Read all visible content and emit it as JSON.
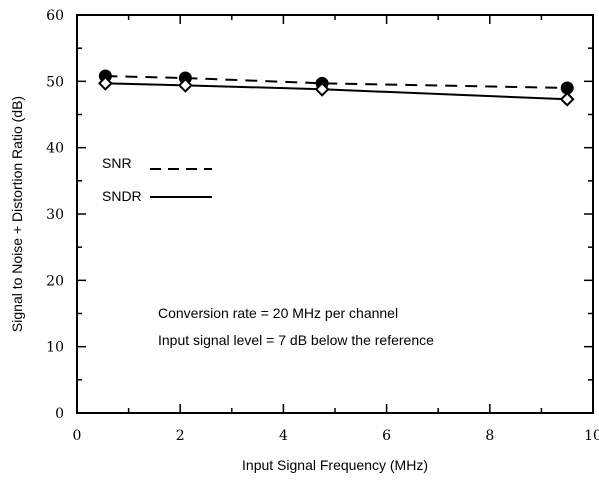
{
  "chart_data": {
    "type": "line",
    "xlabel": "Input Signal Frequency (MHz)",
    "ylabel": "Signal to Noise + Distortion Ratio (dB)",
    "xlim": [
      0,
      10
    ],
    "ylim": [
      0,
      60
    ],
    "x_ticks": [
      "0",
      "2",
      "4",
      "6",
      "8",
      "10"
    ],
    "y_ticks": [
      "0",
      "10",
      "20",
      "30",
      "40",
      "50",
      "60"
    ],
    "grid": false,
    "legend_position": "middle-left",
    "series": [
      {
        "name": "SNR",
        "line_style": "dashed",
        "marker": "filled-circle",
        "color": "#000000",
        "x": [
          0.55,
          2.1,
          4.75,
          9.5
        ],
        "y": [
          50.8,
          50.5,
          49.7,
          49.0
        ]
      },
      {
        "name": "SNDR",
        "line_style": "solid",
        "marker": "open-diamond",
        "color": "#000000",
        "x": [
          0.55,
          2.1,
          4.75,
          9.5
        ],
        "y": [
          49.7,
          49.4,
          48.8,
          47.3
        ]
      }
    ],
    "annotations": [
      "Conversion rate = 20 MHz per channel",
      "Input signal level = 7 dB below the reference"
    ]
  }
}
